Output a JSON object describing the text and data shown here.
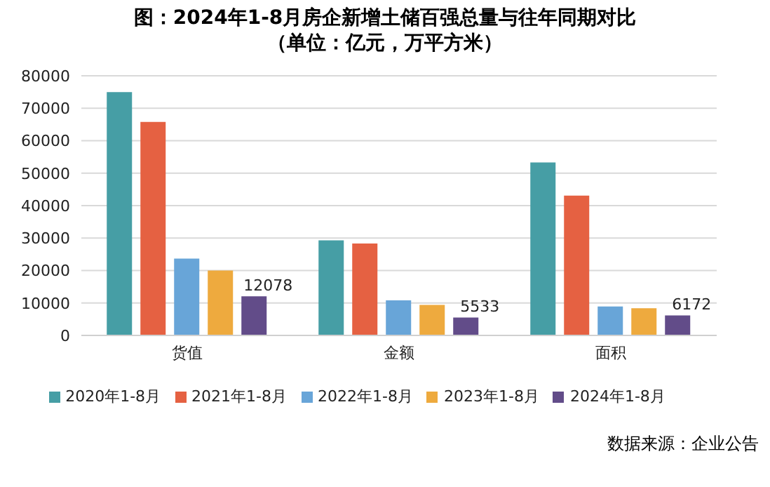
{
  "chart_data": {
    "type": "bar",
    "title": "图：2024年1-8月房企新增土储百强总量与往年同期对比",
    "subtitle": "（单位：亿元，万平方米）",
    "categories": [
      "货值",
      "金额",
      "面积"
    ],
    "series": [
      {
        "name": "2020年1-8月",
        "color": "#469ea5",
        "values": [
          75000,
          29300,
          53300
        ]
      },
      {
        "name": "2021年1-8月",
        "color": "#e56142",
        "values": [
          65800,
          28300,
          43100
        ]
      },
      {
        "name": "2022年1-8月",
        "color": "#68a5d8",
        "values": [
          23700,
          10800,
          8900
        ]
      },
      {
        "name": "2023年1-8月",
        "color": "#eeaa3e",
        "values": [
          20000,
          9400,
          8400
        ]
      },
      {
        "name": "2024年1-8月",
        "color": "#624c89",
        "values": [
          12078,
          5533,
          6172
        ],
        "value_labels": [
          "12078",
          "5533",
          "6172"
        ]
      }
    ],
    "ylim": [
      0,
      80000
    ],
    "yticks": [
      0,
      10000,
      20000,
      30000,
      40000,
      50000,
      60000,
      70000,
      80000
    ],
    "grid": "y",
    "legend": "bottom",
    "annotations": [
      "数据来源：企业公告"
    ]
  }
}
